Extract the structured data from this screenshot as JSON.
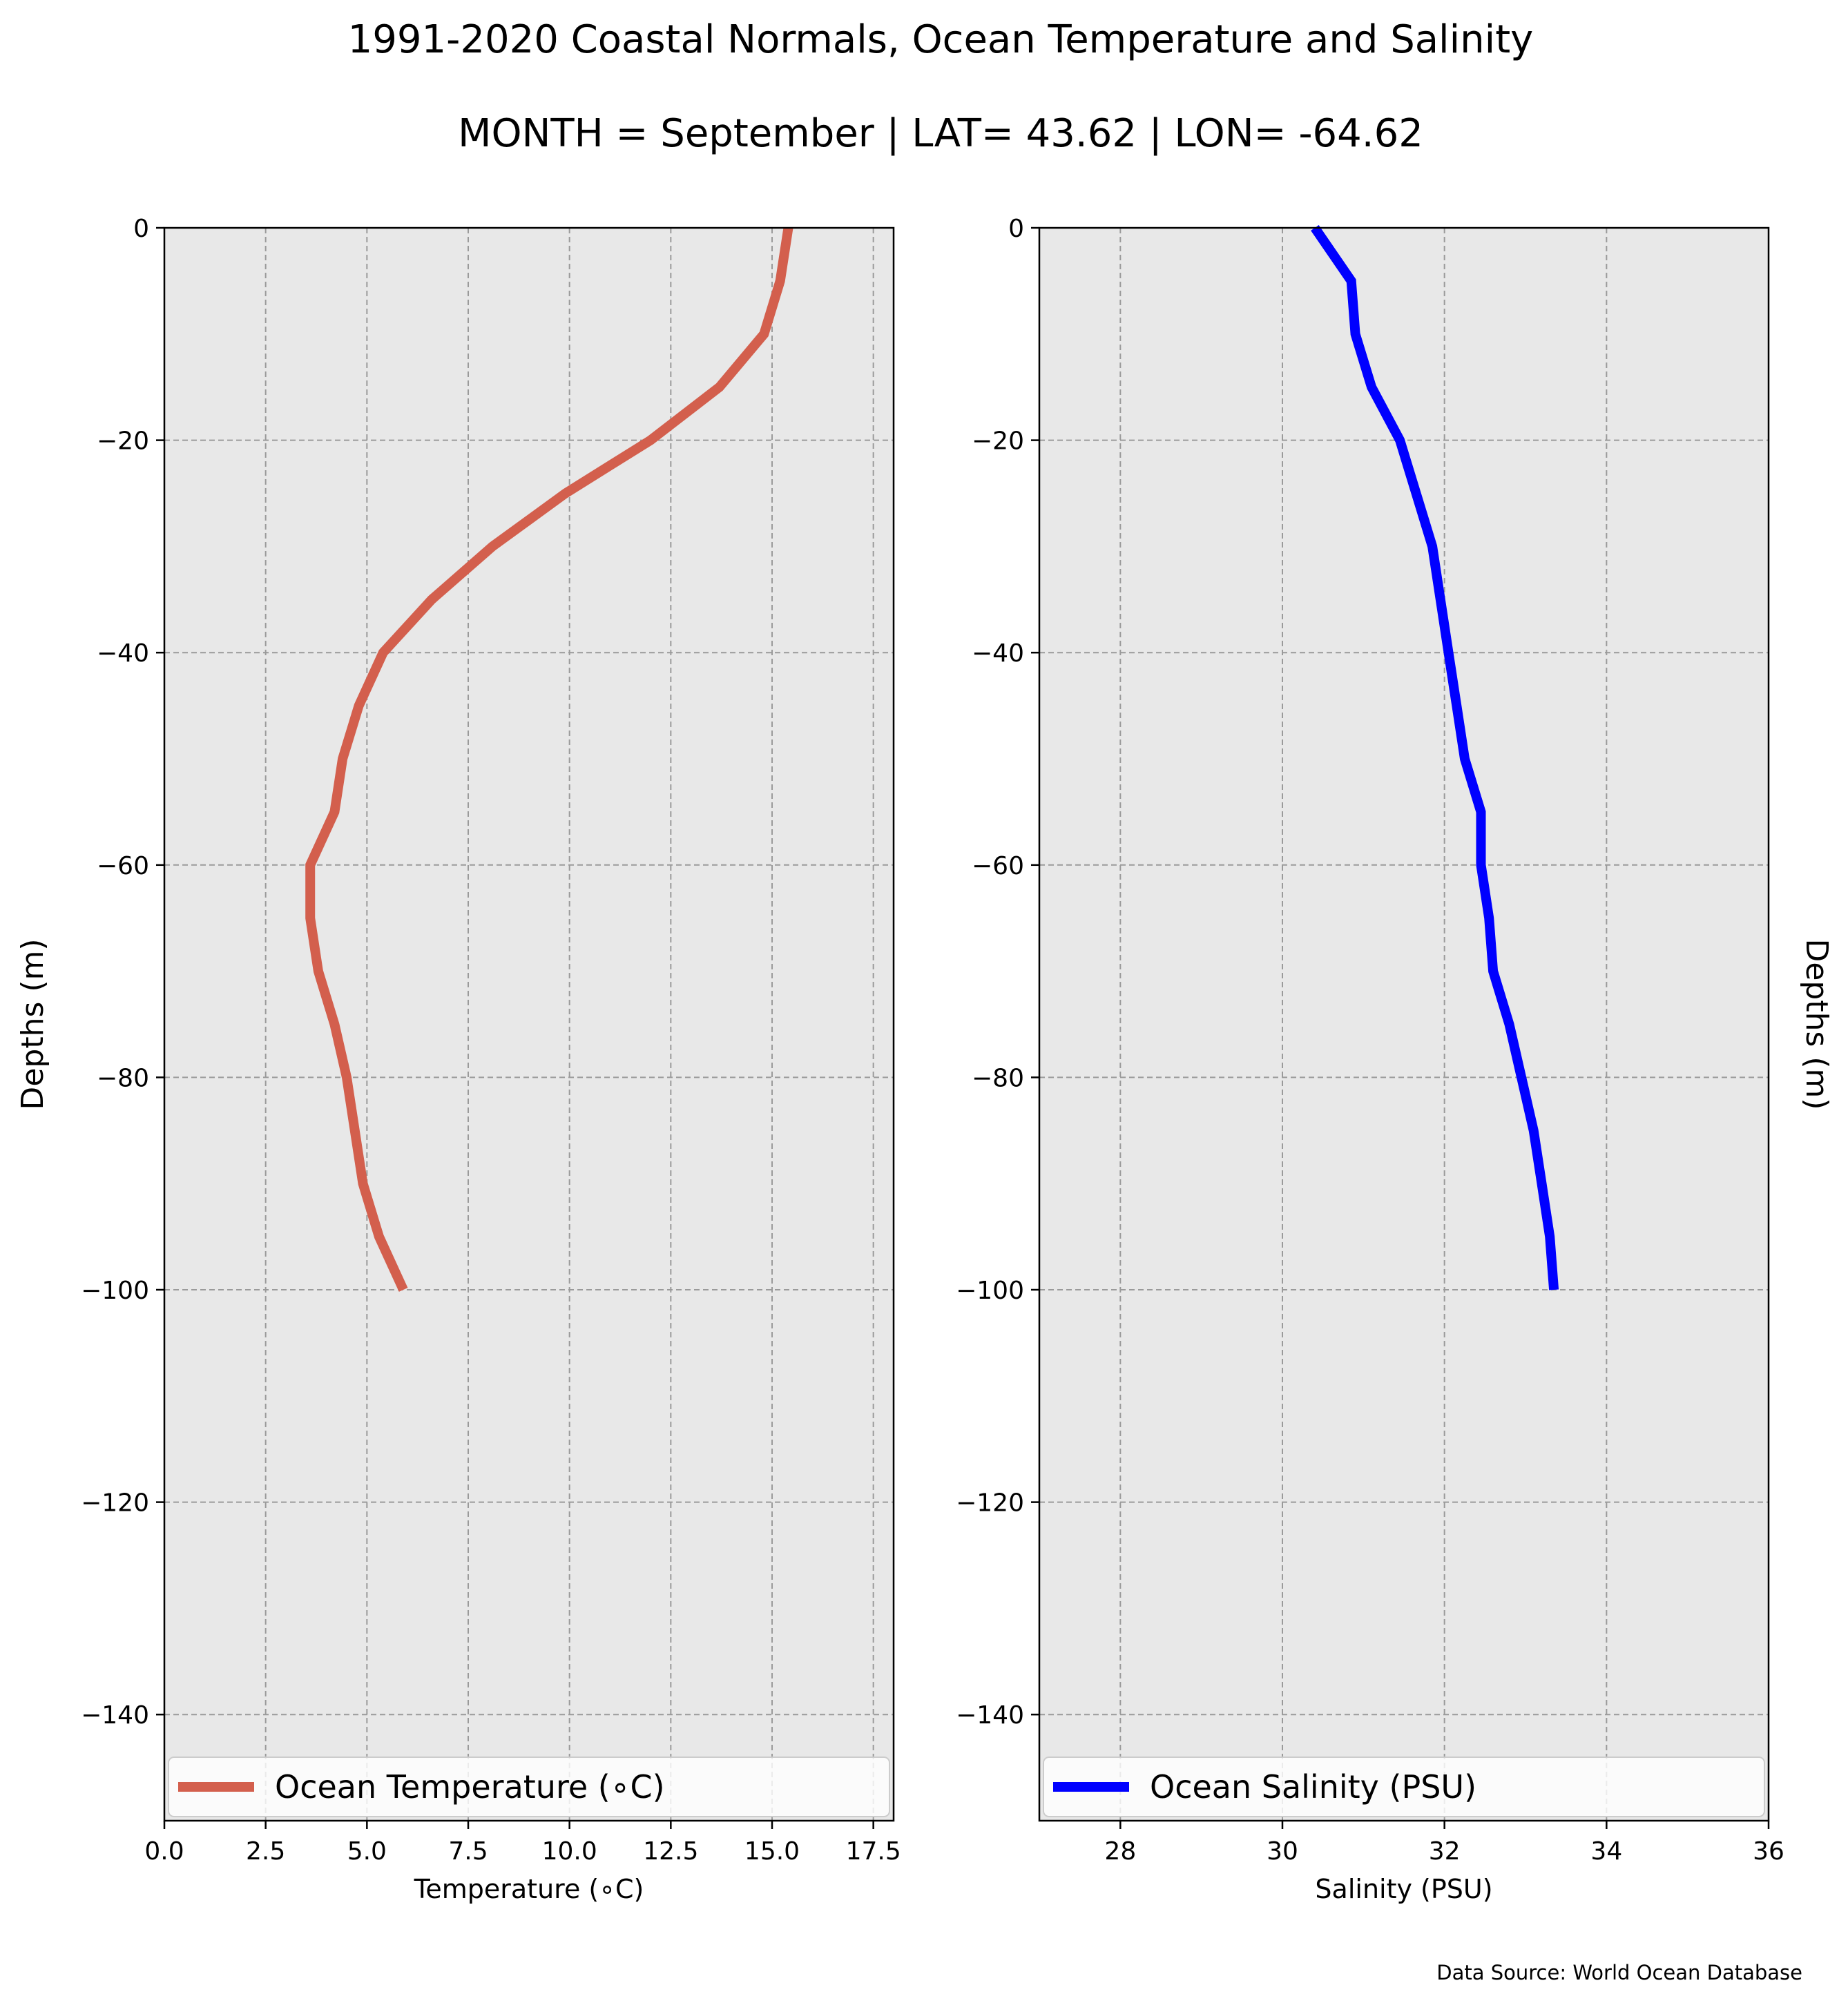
{
  "figure": {
    "title_line1": "1991-2020 Coastal Normals, Ocean Temperature and Salinity",
    "title_line2": "MONTH = September | LAT= 43.62 | LON= -64.62",
    "source_note": "Data Source: World Ocean Database",
    "background": "#ffffff",
    "plot_background": "#e8e8e8"
  },
  "chart_data": [
    {
      "type": "line",
      "ylabel": "Depths (m)",
      "xlabel": "Temperature (∘C)",
      "xlim": [
        0,
        18
      ],
      "ylim": [
        -150,
        0
      ],
      "xticks": [
        0,
        2.5,
        5,
        7.5,
        10,
        12.5,
        15,
        17.5
      ],
      "xtick_labels": [
        "0.0",
        "2.5",
        "5.0",
        "7.5",
        "10.0",
        "12.5",
        "15.0",
        "17.5"
      ],
      "yticks": [
        0,
        -20,
        -40,
        -60,
        -80,
        -100,
        -120,
        -140
      ],
      "ytick_labels": [
        "0",
        "−20",
        "−40",
        "−60",
        "−80",
        "−100",
        "−120",
        "−140"
      ],
      "grid": true,
      "legend_location": "bottom",
      "series": [
        {
          "name": "Ocean Temperature (∘C)",
          "color": "#d35f4d",
          "x": [
            15.4,
            15.2,
            14.8,
            13.7,
            12.0,
            9.9,
            8.1,
            6.6,
            5.4,
            4.8,
            4.4,
            4.2,
            3.6,
            3.6,
            3.8,
            4.2,
            4.5,
            4.9,
            5.3,
            5.9
          ],
          "y": [
            0,
            -5,
            -10,
            -15,
            -20,
            -25,
            -30,
            -35,
            -40,
            -45,
            -50,
            -55,
            -60,
            -65,
            -70,
            -75,
            -80,
            -90,
            -95,
            -100
          ]
        }
      ]
    },
    {
      "type": "line",
      "ylabel": "Depths (m)",
      "xlabel": "Salinity (PSU)",
      "xlim": [
        27,
        36
      ],
      "ylim": [
        -150,
        0
      ],
      "xticks": [
        28,
        30,
        32,
        34,
        36
      ],
      "xtick_labels": [
        "28",
        "30",
        "32",
        "34",
        "36"
      ],
      "yticks": [
        0,
        -20,
        -40,
        -60,
        -80,
        -100,
        -120,
        -140
      ],
      "ytick_labels": [
        "0",
        "−20",
        "−40",
        "−60",
        "−80",
        "−100",
        "−120",
        "−140"
      ],
      "grid": true,
      "legend_location": "bottom",
      "series": [
        {
          "name": "Ocean Salinity (PSU)",
          "color": "#0000ff",
          "x": [
            30.4,
            30.85,
            30.9,
            31.1,
            31.45,
            31.65,
            31.85,
            31.95,
            32.05,
            32.15,
            32.25,
            32.45,
            32.45,
            32.55,
            32.6,
            32.8,
            32.95,
            33.1,
            33.2,
            33.3,
            33.35
          ],
          "y": [
            0,
            -5,
            -10,
            -15,
            -20,
            -25,
            -30,
            -35,
            -40,
            -45,
            -50,
            -55,
            -60,
            -65,
            -70,
            -75,
            -80,
            -85,
            -90,
            -95,
            -100
          ]
        }
      ]
    }
  ]
}
